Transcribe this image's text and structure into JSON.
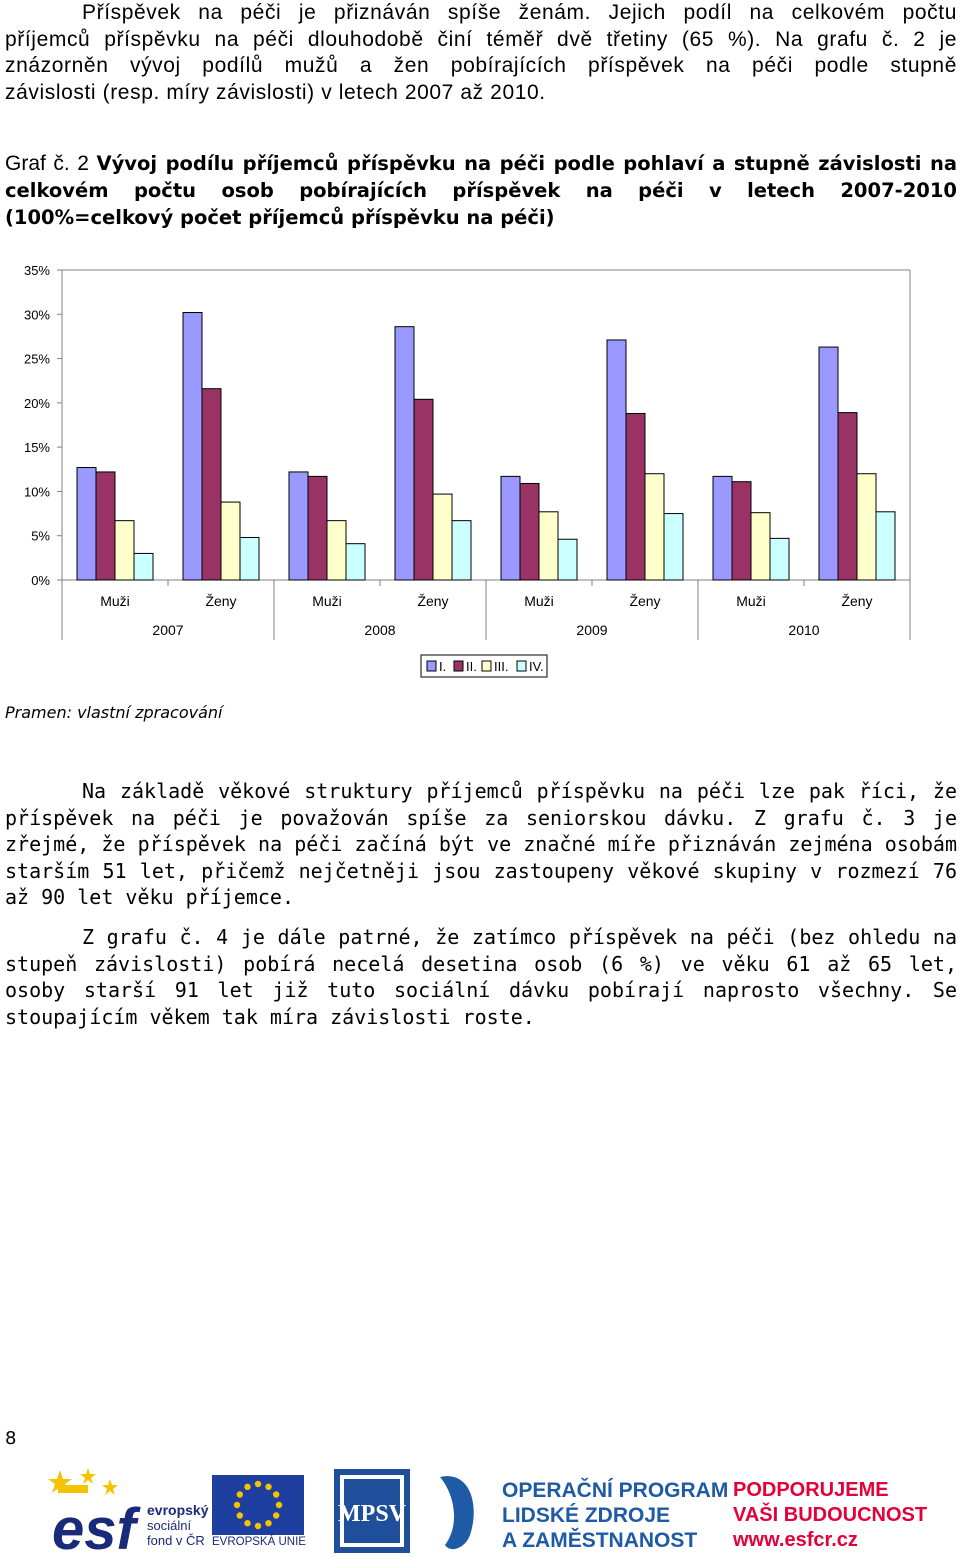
{
  "intro": {
    "line1": "Příspěvek na péči je přiznáván spíše ženám. Jejich podíl na celkovém počtu",
    "line2": "příjemců příspěvku na péči dlouhodobě činí téměř dvě třetiny (65 %). Na grafu č. 2 je",
    "line3": "znázorněn vývoj podílů mužů a žen pobírajících příspěvek na péči podle stupně",
    "line4": "závislosti (resp. míry závislosti) v letech 2007 až 2010."
  },
  "caption": {
    "prefix": "Graf č. 2",
    "title": "Vývoj podílu příjemců příspěvku na péči podle pohlaví a stupně závislosti na celkovém počtu osob pobírajících příspěvek na péči v letech 2007-2010 (100%=celkový počet příjemců příspěvku na péči)"
  },
  "chart_data": {
    "type": "bar",
    "y_ticks": [
      "0%",
      "5%",
      "10%",
      "15%",
      "20%",
      "25%",
      "30%",
      "35%"
    ],
    "ylim": [
      0,
      35
    ],
    "grid": false,
    "legend_position": "bottom-center",
    "categories": [
      "Muži",
      "Ženy",
      "Muži",
      "Ženy",
      "Muži",
      "Ženy",
      "Muži",
      "Ženy"
    ],
    "groups": [
      "2007",
      "2008",
      "2009",
      "2010"
    ],
    "colors": [
      "#9999ff",
      "#993366",
      "#ffffcc",
      "#ccffff"
    ],
    "series": [
      {
        "name": "I.",
        "values": [
          12.7,
          30.2,
          12.2,
          28.6,
          11.7,
          27.1,
          11.7,
          26.3
        ]
      },
      {
        "name": "II.",
        "values": [
          12.2,
          21.6,
          11.7,
          20.4,
          10.9,
          18.8,
          11.1,
          18.9
        ]
      },
      {
        "name": "III.",
        "values": [
          6.7,
          8.8,
          6.7,
          9.7,
          7.7,
          12.0,
          7.6,
          12.0
        ]
      },
      {
        "name": "IV.",
        "values": [
          3.0,
          4.8,
          4.1,
          6.7,
          4.6,
          7.5,
          4.7,
          7.7
        ]
      }
    ]
  },
  "source": "Pramen: vlastní zpracování",
  "body": {
    "p1": "Na základě věkové struktury příjemců příspěvku na péči lze pak říci, že příspěvek na péči je považován spíše za seniorskou dávku. Z grafu č. 3 je zřejmé, že příspěvek na péči začíná být ve značné míře přiznáván zejména osobám starším 51 let, přičemž nejčetněji jsou zastoupeny věkové skupiny v rozmezí 76 až 90 let věku příjemce.",
    "p2": "Z grafu č. 4 je dále patrné, že zatímco příspěvek na péči (bez ohledu na stupeň závislosti) pobírá necelá desetina osob (6 %) ve věku 61 až 65 let, osoby starší 91 let již tuto sociální dávku pobírají naprosto všechny. Se stoupajícím věkem tak míra závislosti roste."
  },
  "page_number": "8",
  "footer": {
    "esf_logo_letters": "esf",
    "esf_line1": "evropský",
    "esf_line2": "sociální",
    "esf_line3": "fond v ČR",
    "eu_label": "EVROPSKÁ UNIE",
    "mpsv_logo_letters": "MPSV",
    "op_line1": "OPERAČNÍ PROGRAM",
    "op_line2": "LIDSKÉ ZDROJE",
    "op_line3": "A ZAMĚSTNANOST",
    "pod_line1": "PODPORUJEME",
    "pod_line2": "VAŠI BUDOUCNOST",
    "pod_line3": "www.esfcr.cz"
  }
}
